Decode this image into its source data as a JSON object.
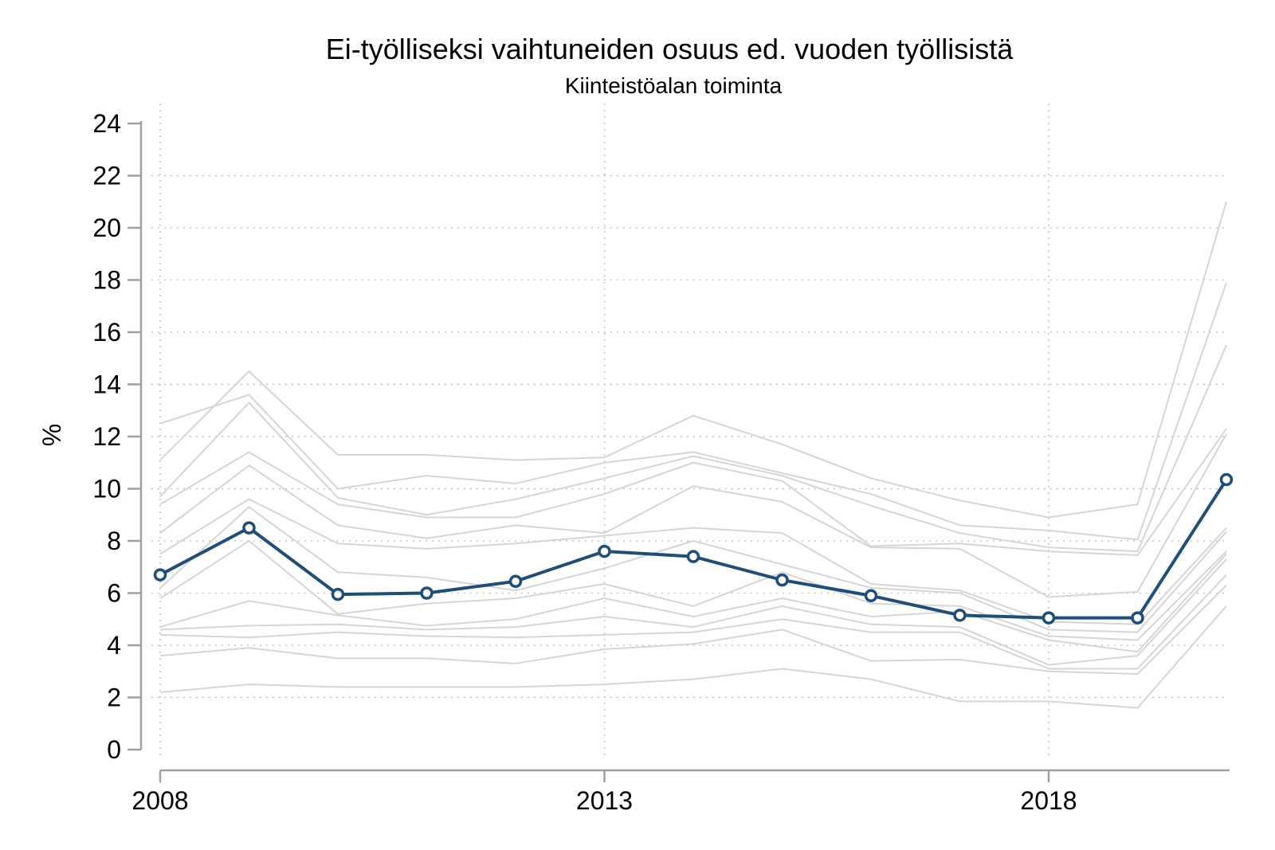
{
  "chart_data": {
    "type": "line",
    "title": "Ei-työlliseksi vaihtuneiden osuus ed. vuoden työllisistä",
    "subtitle": "Kiinteistöalan toiminta",
    "ylabel": "%",
    "x": [
      2008,
      2009,
      2010,
      2011,
      2012,
      2013,
      2014,
      2015,
      2016,
      2017,
      2018,
      2019,
      2020
    ],
    "x_axis_ticks": [
      2008,
      2013,
      2018
    ],
    "y_axis": {
      "min": 0,
      "max": 24,
      "tick_step": 2
    },
    "grid": {
      "horizontal_dotted_at": [
        2,
        4,
        6,
        8,
        10,
        12,
        14,
        16,
        18,
        20,
        22
      ],
      "vertical_dotted_at": [
        2008,
        2013,
        2018
      ]
    },
    "legend": "none",
    "highlight_series": {
      "name": "Kiinteistöalan toiminta",
      "color": "#1f4e79",
      "marker": "open-circle",
      "values": [
        6.7,
        8.5,
        5.95,
        6.0,
        6.45,
        7.6,
        7.4,
        6.5,
        5.9,
        5.15,
        5.05,
        5.05,
        10.35
      ]
    },
    "background_series": {
      "description": "unlabeled comparison industries (light gray)",
      "color": "#d5d5d5",
      "series": [
        [
          11.1,
          14.5,
          11.3,
          11.3,
          11.1,
          11.2,
          12.8,
          11.7,
          10.4,
          9.55,
          8.9,
          9.4,
          21.0
        ],
        [
          12.5,
          13.6,
          10.0,
          10.5,
          10.2,
          11.0,
          11.4,
          10.6,
          9.8,
          8.6,
          8.4,
          8.05,
          17.9
        ],
        [
          9.7,
          13.3,
          9.65,
          9.0,
          9.6,
          10.4,
          11.25,
          10.5,
          9.35,
          8.3,
          7.75,
          7.6,
          15.5
        ],
        [
          9.4,
          11.4,
          9.4,
          8.9,
          8.9,
          9.8,
          11.0,
          10.3,
          7.8,
          7.9,
          7.6,
          7.45,
          12.3
        ],
        [
          8.3,
          10.9,
          8.6,
          8.1,
          8.6,
          8.3,
          10.1,
          9.5,
          7.75,
          7.7,
          5.85,
          6.05,
          12.1
        ],
        [
          7.5,
          9.6,
          7.9,
          7.7,
          7.9,
          8.2,
          8.5,
          8.3,
          6.35,
          6.1,
          4.9,
          4.8,
          8.5
        ],
        [
          6.2,
          9.3,
          6.8,
          6.6,
          6.1,
          6.95,
          8.0,
          7.1,
          6.2,
          6.0,
          4.6,
          4.5,
          8.35
        ],
        [
          5.8,
          8.0,
          5.2,
          5.6,
          5.8,
          6.35,
          5.5,
          6.8,
          5.6,
          5.5,
          4.35,
          4.2,
          7.6
        ],
        [
          4.7,
          5.7,
          5.15,
          4.75,
          5.0,
          5.8,
          5.1,
          5.8,
          5.1,
          5.3,
          4.2,
          3.75,
          7.5
        ],
        [
          4.6,
          4.75,
          4.8,
          4.6,
          4.7,
          5.1,
          4.7,
          5.5,
          4.8,
          4.7,
          3.25,
          3.6,
          7.3
        ],
        [
          4.4,
          4.3,
          4.5,
          4.35,
          4.3,
          4.4,
          4.5,
          5.0,
          4.5,
          4.5,
          3.1,
          3.1,
          6.7
        ],
        [
          3.6,
          3.9,
          3.5,
          3.5,
          3.3,
          3.85,
          4.05,
          4.6,
          3.4,
          3.45,
          3.0,
          2.9,
          6.3
        ],
        [
          2.2,
          2.5,
          2.4,
          2.4,
          2.4,
          2.5,
          2.7,
          3.1,
          2.7,
          1.85,
          1.85,
          1.6,
          5.5
        ]
      ]
    },
    "colors": {
      "highlight": "#1f4e79",
      "background_lines": "#d5d5d5",
      "axis": "#a0a0a0",
      "gridline": "#bdbdbd",
      "text": "#000000"
    }
  }
}
